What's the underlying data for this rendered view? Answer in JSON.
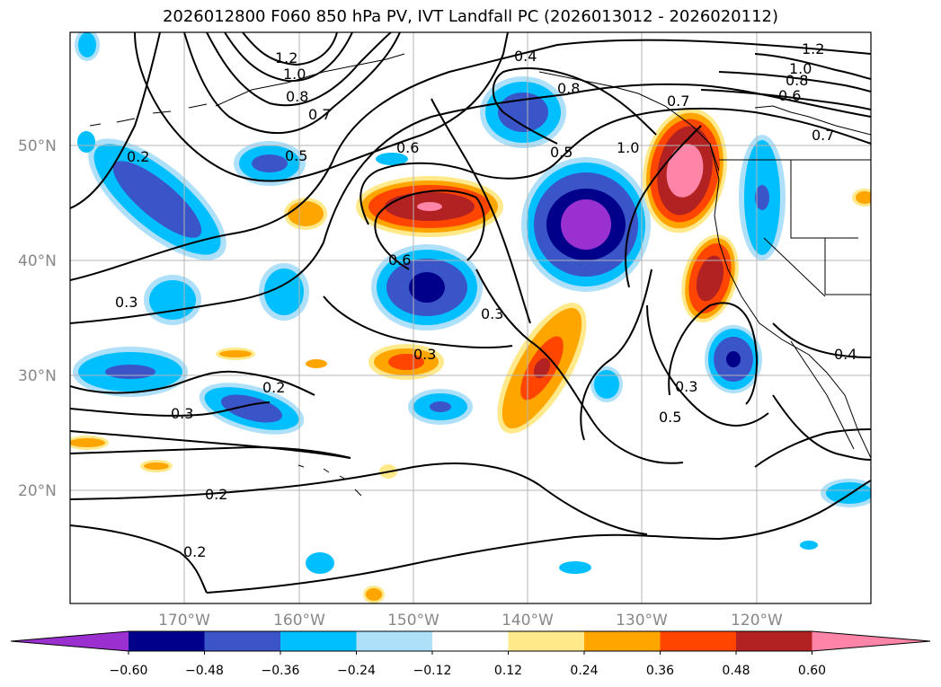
{
  "title": "2026012800 F060 850 hPa PV, IVT Landfall PC (2026013012 - 2026020112)",
  "lat_labels": [
    "50°N",
    "40°N",
    "30°N",
    "20°N"
  ],
  "lon_labels": [
    "170°W",
    "160°W",
    "150°W",
    "140°W",
    "130°W",
    "120°W"
  ],
  "colorbar": {
    "colors": [
      "#9b30d0",
      "#00008b",
      "#3a55c8",
      "#00bfff",
      "#aee0fa",
      "#ffffff",
      "#ffe98a",
      "#ffa500",
      "#ff4500",
      "#b22222",
      "#ff85a8"
    ],
    "tick_labels": [
      "−0.60",
      "−0.48",
      "−0.36",
      "−0.24",
      "−0.12",
      "0.12",
      "0.24",
      "0.36",
      "0.48",
      "0.60"
    ]
  },
  "contour_labels": [
    "1.2",
    "1.0",
    "0.8",
    "0.7",
    "0.5",
    "0.2",
    "0.6",
    "0.4",
    "0.8",
    "0.5",
    "1.0",
    "0.7",
    "1.2",
    "1.0",
    "0.8",
    "0.6",
    "0.7",
    "0.6",
    "0.3",
    "0.3",
    "0.3",
    "0.2",
    "0.3",
    "0.2",
    "0.2",
    "0.3",
    "0.5",
    "0.4"
  ]
}
